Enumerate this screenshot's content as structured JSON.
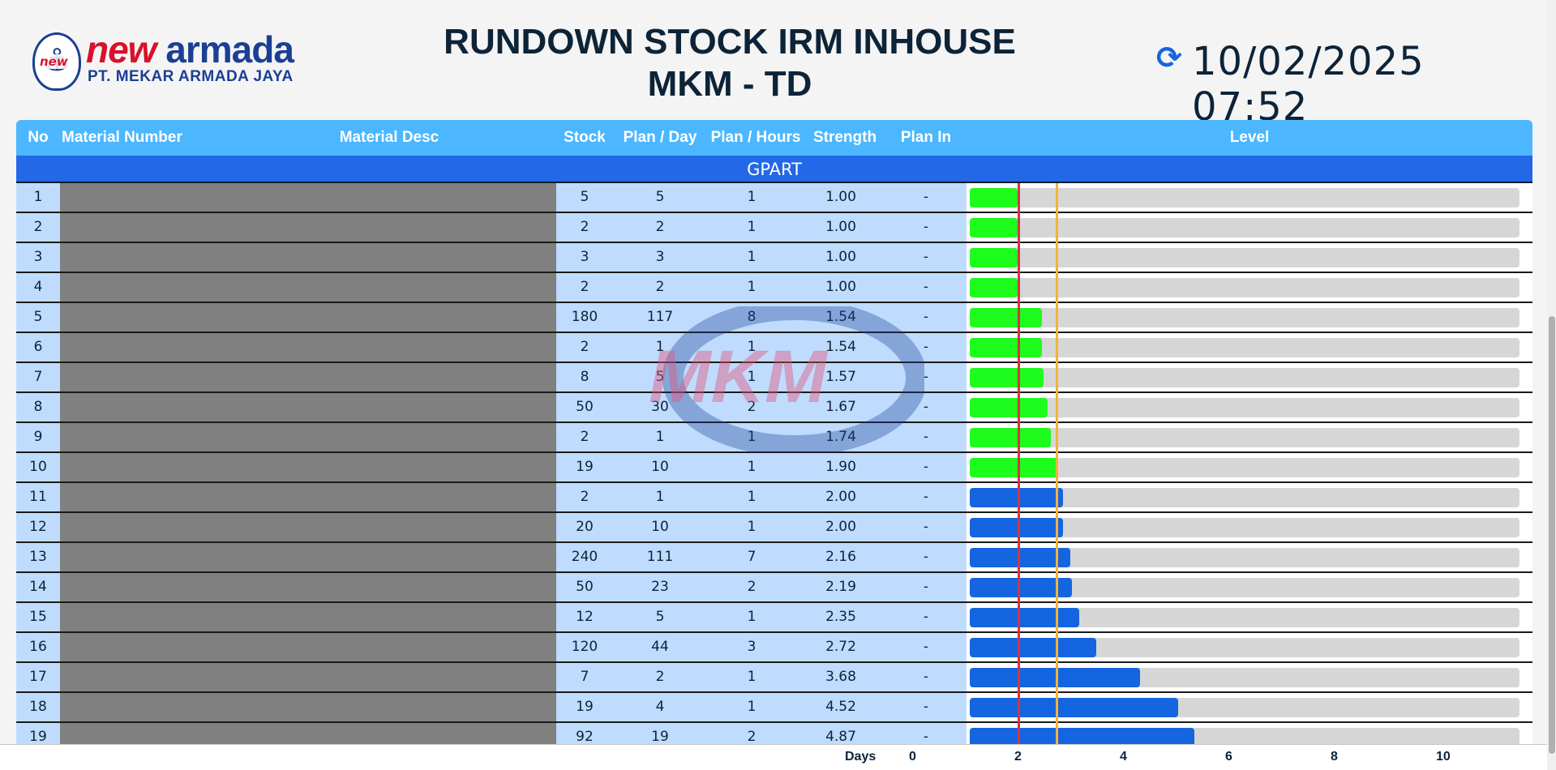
{
  "logo": {
    "word1": "new",
    "word2": "armada",
    "tag": "new",
    "company": "PT. MEKAR ARMADA JAYA"
  },
  "title": {
    "line1": "RUNDOWN STOCK IRM INHOUSE",
    "line2": "MKM - TD"
  },
  "clock": {
    "datetime": "10/02/2025 07:52",
    "icon": "refresh-icon"
  },
  "table": {
    "columns": {
      "no": "No",
      "material_number": "Material Number",
      "material_desc": "Material Desc",
      "stock": "Stock",
      "plan_day": "Plan / Day",
      "plan_hours": "Plan / Hours",
      "strength": "Strength",
      "plan_in": "Plan In",
      "level": "Level"
    },
    "group": "GPART",
    "rows": [
      {
        "no": "1",
        "stock": "5",
        "plan_day": "5",
        "plan_hours": "1",
        "strength": "1.00",
        "plan_in": "-"
      },
      {
        "no": "2",
        "stock": "2",
        "plan_day": "2",
        "plan_hours": "1",
        "strength": "1.00",
        "plan_in": "-"
      },
      {
        "no": "3",
        "stock": "3",
        "plan_day": "3",
        "plan_hours": "1",
        "strength": "1.00",
        "plan_in": "-"
      },
      {
        "no": "4",
        "stock": "2",
        "plan_day": "2",
        "plan_hours": "1",
        "strength": "1.00",
        "plan_in": "-"
      },
      {
        "no": "5",
        "stock": "180",
        "plan_day": "117",
        "plan_hours": "8",
        "strength": "1.54",
        "plan_in": "-"
      },
      {
        "no": "6",
        "stock": "2",
        "plan_day": "1",
        "plan_hours": "1",
        "strength": "1.54",
        "plan_in": "-"
      },
      {
        "no": "7",
        "stock": "8",
        "plan_day": "5",
        "plan_hours": "1",
        "strength": "1.57",
        "plan_in": "-"
      },
      {
        "no": "8",
        "stock": "50",
        "plan_day": "30",
        "plan_hours": "2",
        "strength": "1.67",
        "plan_in": "-"
      },
      {
        "no": "9",
        "stock": "2",
        "plan_day": "1",
        "plan_hours": "1",
        "strength": "1.74",
        "plan_in": "-"
      },
      {
        "no": "10",
        "stock": "19",
        "plan_day": "10",
        "plan_hours": "1",
        "strength": "1.90",
        "plan_in": "-"
      },
      {
        "no": "11",
        "stock": "2",
        "plan_day": "1",
        "plan_hours": "1",
        "strength": "2.00",
        "plan_in": "-"
      },
      {
        "no": "12",
        "stock": "20",
        "plan_day": "10",
        "plan_hours": "1",
        "strength": "2.00",
        "plan_in": "-"
      },
      {
        "no": "13",
        "stock": "240",
        "plan_day": "111",
        "plan_hours": "7",
        "strength": "2.16",
        "plan_in": "-"
      },
      {
        "no": "14",
        "stock": "50",
        "plan_day": "23",
        "plan_hours": "2",
        "strength": "2.19",
        "plan_in": "-"
      },
      {
        "no": "15",
        "stock": "12",
        "plan_day": "5",
        "plan_hours": "1",
        "strength": "2.35",
        "plan_in": "-"
      },
      {
        "no": "16",
        "stock": "120",
        "plan_day": "44",
        "plan_hours": "3",
        "strength": "2.72",
        "plan_in": "-"
      },
      {
        "no": "17",
        "stock": "7",
        "plan_day": "2",
        "plan_hours": "1",
        "strength": "3.68",
        "plan_in": "-"
      },
      {
        "no": "18",
        "stock": "19",
        "plan_day": "4",
        "plan_hours": "1",
        "strength": "4.52",
        "plan_in": "-"
      },
      {
        "no": "19",
        "stock": "92",
        "plan_day": "19",
        "plan_hours": "2",
        "strength": "4.87",
        "plan_in": "-"
      }
    ]
  },
  "level": {
    "axis_label": "Days",
    "ticks": [
      "0",
      "2",
      "4",
      "6",
      "8",
      "10"
    ],
    "threshold_red_days": 1,
    "threshold_orange_days": 1.85,
    "green_color": "#1dfc1d",
    "blue_color": "#1565e0",
    "red_line_color": "#d9333c",
    "orange_line_color": "#f2b33c"
  },
  "watermark": {
    "text": "MKM"
  }
}
